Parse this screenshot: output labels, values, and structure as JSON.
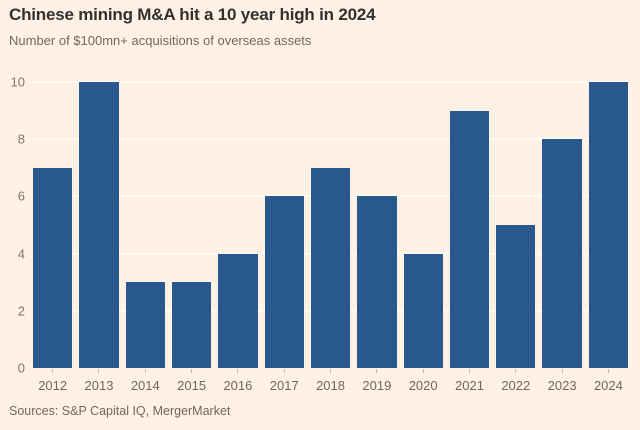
{
  "chart_data": {
    "type": "bar",
    "title": "Chinese mining M&A hit a 10 year high in 2024",
    "subtitle": "Number of $100mn+ acquisitions of overseas assets",
    "source": "Sources: S&P Capital IQ, MergerMarket",
    "categories": [
      "2012",
      "2013",
      "2014",
      "2015",
      "2016",
      "2017",
      "2018",
      "2019",
      "2020",
      "2021",
      "2022",
      "2023",
      "2024"
    ],
    "values": [
      7,
      10,
      3,
      3,
      4,
      6,
      7,
      6,
      4,
      9,
      5,
      8,
      10
    ],
    "xlabel": "",
    "ylabel": "",
    "ylim": [
      0,
      10
    ],
    "yticks": [
      0,
      2,
      4,
      6,
      8,
      10
    ],
    "grid": "horizontal-faint",
    "legend": "none",
    "colors": {
      "background": "#FFF1E5",
      "bar": "#28588C",
      "title_text": "#33302E",
      "axis_text": "#6F675F",
      "ytick_text": "#7E766D",
      "gridline": "rgba(255,255,255,0.65)",
      "tick_mark": "#C6BCB1"
    }
  }
}
